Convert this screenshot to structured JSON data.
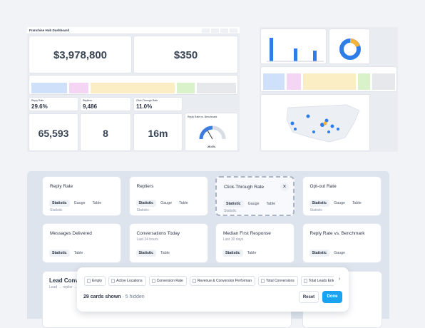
{
  "thumb_left": {
    "title": "Franchise Hub Dashboard",
    "big": [
      "$3,978,800",
      "$350"
    ],
    "small": [
      {
        "label": "Reply Rate",
        "value": "29.6%"
      },
      {
        "label": "Repliers",
        "value": "9,486"
      },
      {
        "label": "Click-Through Rate",
        "value": "11.0%"
      }
    ],
    "stats": [
      "65,593",
      "8",
      "16m"
    ],
    "gauge": {
      "label": "Reply Rate vs. Benchmark",
      "value": "29.6%"
    }
  },
  "cards": [
    {
      "title": "Reply Rate",
      "tabs": [
        "Statistic",
        "Gauge",
        "Table"
      ],
      "footer": "Statistic"
    },
    {
      "title": "Repliers",
      "tabs": [
        "Statistic",
        "Gauge",
        "Table"
      ],
      "footer": "Statistic"
    },
    {
      "title": "Click-Through Rate",
      "tabs": [
        "Statistic",
        "Gauge",
        "Table"
      ],
      "footer": "Statistic",
      "selected": true
    },
    {
      "title": "Opt-out Rate",
      "tabs": [
        "Statistic",
        "Gauge",
        "Table"
      ],
      "footer": "Statistic"
    },
    {
      "title": "Messages Delivered",
      "tabs": [
        "Statistic",
        "Table"
      ]
    },
    {
      "title": "Conversations Today",
      "subtitle": "Last 24 hours",
      "tabs": [
        "Statistic",
        "Table"
      ]
    },
    {
      "title": "Median First Response",
      "subtitle": "Last 30 days",
      "tabs": [
        "Statistic",
        "Table"
      ]
    },
    {
      "title": "Reply Rate vs. Benchmark",
      "tabs": [
        "Statistic",
        "Gauge"
      ]
    }
  ],
  "lead_card": {
    "title": "Lead Conver",
    "subtitle": "Lead → replier →"
  },
  "toolbar": {
    "chips": [
      "Empty",
      "Active Locations",
      "Conversion Rate",
      "Revenue & Conversion Performan",
      "Total Conversions",
      "Total Leads Enter"
    ],
    "count": "29",
    "count_label": "cards shown",
    "hidden": "· 5 hidden",
    "reset": "Reset",
    "done": "Done"
  }
}
